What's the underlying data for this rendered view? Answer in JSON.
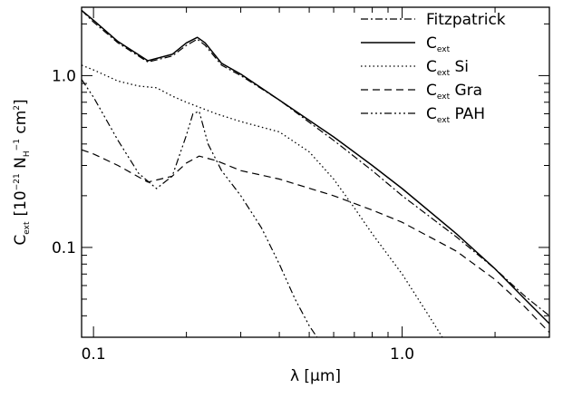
{
  "chart_data": {
    "type": "line",
    "xscale": "log",
    "yscale": "log",
    "xlim": [
      0.0915,
      3.0
    ],
    "ylim": [
      0.03,
      2.5
    ],
    "xlabel": "λ [μm]",
    "ylabel": {
      "main": "C",
      "sub": "ext",
      "units": "[10",
      "sup1": "−21",
      "mid": " N",
      "sub2": "H",
      "sup2": "−1",
      "end": " cm",
      "sup3": "2",
      "close": "]"
    },
    "xticks": [
      {
        "value": 0.1,
        "label": "0.1"
      },
      {
        "value": 1.0,
        "label": "1.0"
      }
    ],
    "yticks": [
      {
        "value": 0.1,
        "label": "0.1"
      },
      {
        "value": 1.0,
        "label": "1.0"
      }
    ],
    "grid": false,
    "legend_position": "top-right",
    "series": [
      {
        "name": "Fitzpatrick",
        "label_main": "Fitzpatrick",
        "label_sub": "",
        "label_tail": "",
        "dash": "8,3,2,3",
        "width": 1.2,
        "x": [
          0.0915,
          0.1,
          0.12,
          0.15,
          0.18,
          0.2,
          0.217,
          0.23,
          0.26,
          0.3,
          0.4,
          0.6,
          0.8,
          1.0,
          1.5,
          2.0,
          2.5,
          3.0
        ],
        "y": [
          2.4,
          2.05,
          1.55,
          1.2,
          1.3,
          1.5,
          1.63,
          1.5,
          1.15,
          1.0,
          0.72,
          0.42,
          0.28,
          0.2,
          0.115,
          0.075,
          0.052,
          0.04
        ]
      },
      {
        "name": "C_ext",
        "label_main": "C",
        "label_sub": "ext",
        "label_tail": "",
        "dash": "",
        "width": 1.5,
        "x": [
          0.0915,
          0.1,
          0.12,
          0.15,
          0.18,
          0.2,
          0.217,
          0.23,
          0.26,
          0.3,
          0.4,
          0.6,
          0.8,
          1.0,
          1.5,
          2.0,
          2.5,
          3.0
        ],
        "y": [
          2.4,
          2.1,
          1.58,
          1.22,
          1.33,
          1.55,
          1.67,
          1.55,
          1.18,
          1.02,
          0.72,
          0.44,
          0.3,
          0.22,
          0.12,
          0.075,
          0.05,
          0.036
        ]
      },
      {
        "name": "C_ext Si",
        "label_main": "C",
        "label_sub": "ext",
        "label_tail": " Si",
        "dash": "1.5,3",
        "width": 1.3,
        "x": [
          0.0915,
          0.1,
          0.12,
          0.14,
          0.16,
          0.18,
          0.2,
          0.25,
          0.3,
          0.4,
          0.5,
          0.6,
          0.7,
          0.8,
          1.0,
          1.2,
          1.35
        ],
        "y": [
          1.15,
          1.08,
          0.93,
          0.87,
          0.85,
          0.76,
          0.7,
          0.6,
          0.54,
          0.47,
          0.36,
          0.25,
          0.17,
          0.12,
          0.07,
          0.042,
          0.03
        ]
      },
      {
        "name": "C_ext Gra",
        "label_main": "C",
        "label_sub": "ext",
        "label_tail": " Gra",
        "dash": "8,5",
        "width": 1.2,
        "x": [
          0.0915,
          0.1,
          0.12,
          0.15,
          0.18,
          0.2,
          0.22,
          0.25,
          0.3,
          0.4,
          0.6,
          0.8,
          1.0,
          1.5,
          2.0,
          2.5,
          3.0
        ],
        "y": [
          0.37,
          0.35,
          0.3,
          0.24,
          0.26,
          0.31,
          0.34,
          0.32,
          0.28,
          0.25,
          0.2,
          0.165,
          0.14,
          0.095,
          0.065,
          0.045,
          0.032
        ]
      },
      {
        "name": "C_ext PAH",
        "label_main": "C",
        "label_sub": "ext",
        "label_tail": " PAH",
        "dash": "8,3,2,3,2,3,2,3",
        "width": 1.2,
        "x": [
          0.0915,
          0.1,
          0.12,
          0.14,
          0.16,
          0.18,
          0.2,
          0.21,
          0.22,
          0.235,
          0.26,
          0.3,
          0.35,
          0.4,
          0.45,
          0.5,
          0.53
        ],
        "y": [
          0.95,
          0.75,
          0.42,
          0.27,
          0.22,
          0.26,
          0.45,
          0.6,
          0.62,
          0.4,
          0.28,
          0.2,
          0.13,
          0.08,
          0.05,
          0.035,
          0.03
        ]
      }
    ]
  }
}
